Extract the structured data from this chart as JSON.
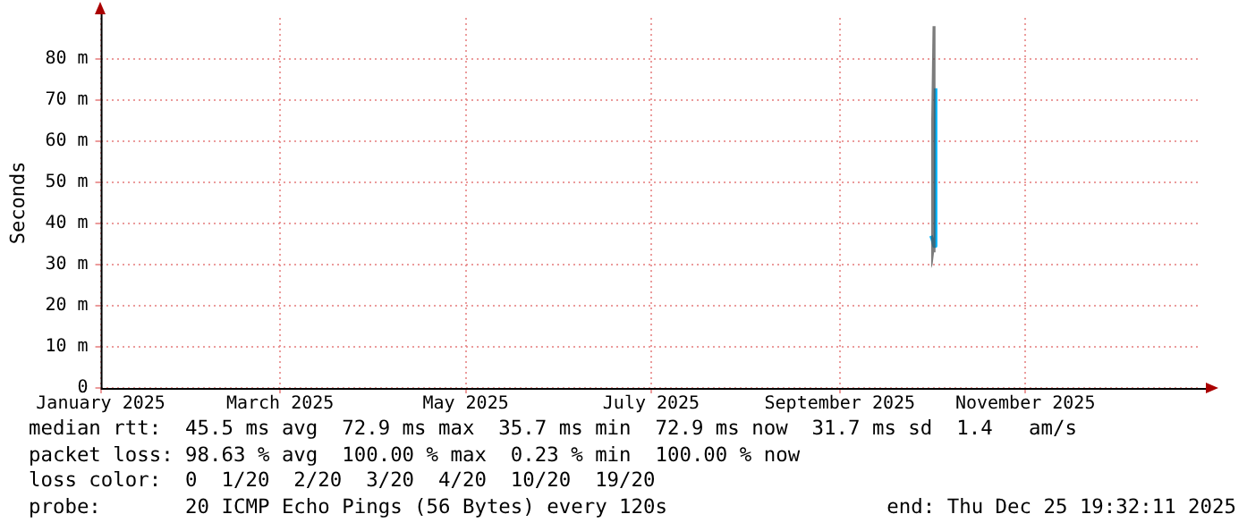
{
  "chart_data": {
    "type": "line",
    "ylabel": "Seconds",
    "x": [
      "2025-10-01T00:00",
      "2025-10-01T12:00",
      "2025-10-02T00:00",
      "2025-10-02T12:00"
    ],
    "series": [
      {
        "name": null,
        "color": "#00b4ff",
        "values": [
          37,
          36,
          34.5,
          72.9
        ],
        "lower": [
          29,
          30,
          33,
          46
        ],
        "upper": [
          62,
          88,
          88,
          88
        ]
      }
    ],
    "xlim": [
      "2025-01-01",
      "2025-12-28"
    ],
    "xticks": [
      {
        "value": "2025-01-01",
        "label": "January 2025"
      },
      {
        "value": "2025-03-01",
        "label": "March 2025"
      },
      {
        "value": "2025-05-01",
        "label": "May 2025"
      },
      {
        "value": "2025-07-01",
        "label": "July 2025"
      },
      {
        "value": "2025-09-01",
        "label": "September 2025"
      },
      {
        "value": "2025-11-01",
        "label": "November 2025"
      }
    ],
    "ylim": [
      0,
      90
    ],
    "yticks": [
      0,
      {
        "value": 10,
        "label": "10 m"
      },
      {
        "value": 20,
        "label": "20 m"
      },
      {
        "value": 30,
        "label": "30 m"
      },
      {
        "value": 40,
        "label": "40 m"
      },
      {
        "value": 50,
        "label": "50 m"
      },
      {
        "value": 60,
        "label": "60 m"
      },
      {
        "value": 70,
        "label": "70 m"
      },
      {
        "value": 80,
        "label": "80 m"
      }
    ],
    "grid": true,
    "legend": false,
    "marker": "none",
    "line_style": "solid",
    "annotations": [
      "median rtt:  45.5 ms avg  72.9 ms max  35.7 ms min  72.9 ms now  31.7 ms sd  1.4   am/s",
      "packet loss: 98.63 % avg  100.00 % max  0.23 % min  100.00 % now",
      "loss color:  0  1/20  2/20  3/20  4/20  10/20  19/20",
      "probe:       20 ICMP Echo Pings (56 Bytes) every 120s",
      "end: Thu Dec 25 19:32:11 2025"
    ]
  }
}
